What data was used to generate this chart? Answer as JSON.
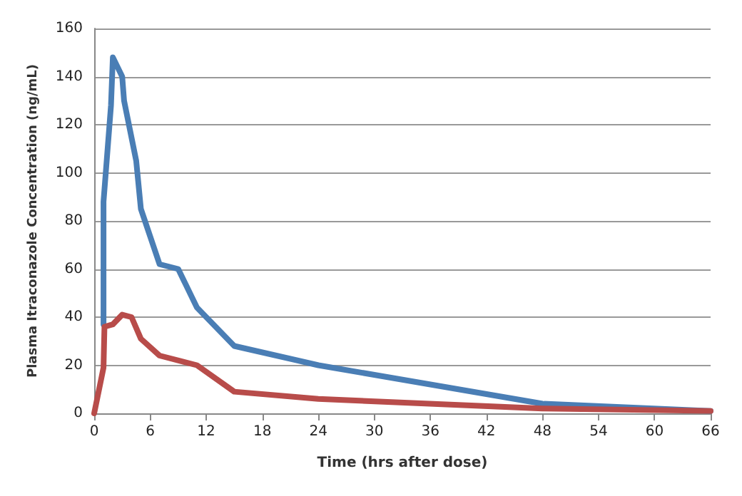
{
  "chart_data": {
    "type": "line",
    "xlabel": "Time (hrs after dose)",
    "ylabel": "Plasma Itraconazole Concentration (ng/mL)",
    "xlim": [
      0,
      66
    ],
    "xticks": [
      0,
      6,
      12,
      18,
      24,
      30,
      36,
      42,
      48,
      54,
      60,
      66
    ],
    "ylim": [
      0,
      160
    ],
    "yticks": [
      0,
      20,
      40,
      60,
      80,
      100,
      120,
      140,
      160
    ],
    "grid": "y",
    "marker": "none",
    "line_style": "solid",
    "series": [
      {
        "color": "#4a7eb5",
        "x": [
          1,
          1,
          1.8,
          2,
          3,
          3.2,
          4.5,
          5,
          7,
          9,
          11,
          15,
          24,
          48,
          66
        ],
        "values": [
          37,
          88,
          128,
          148,
          140,
          130,
          105,
          85,
          62,
          60,
          44,
          28,
          20,
          4,
          1
        ]
      },
      {
        "color": "#b84c4a",
        "x": [
          0,
          1,
          1.1,
          2,
          2.5,
          3,
          4,
          5,
          7,
          11,
          15,
          24,
          48,
          66
        ],
        "values": [
          0,
          19,
          36,
          37,
          39,
          41,
          40,
          31,
          24,
          20,
          9,
          6,
          2,
          1
        ]
      }
    ]
  }
}
